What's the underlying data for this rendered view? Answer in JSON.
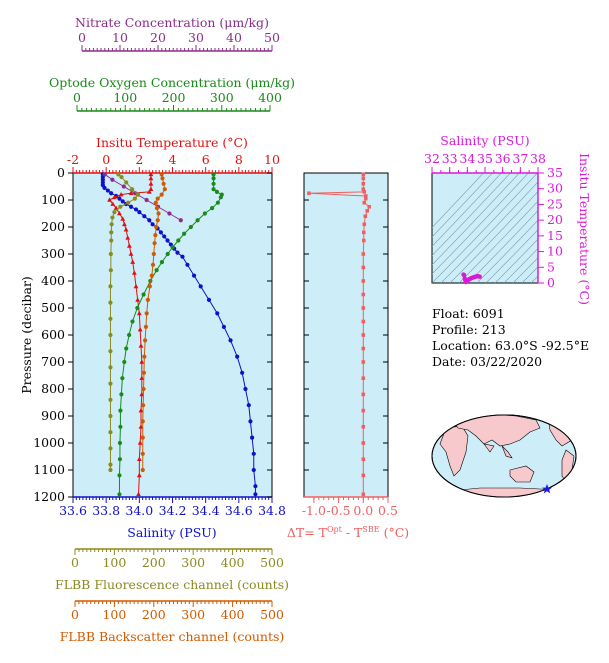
{
  "colors": {
    "nitrate": "#8b2e8b",
    "oxygen": "#1a8a1a",
    "temperature": "#e01010",
    "salinity": "#1010c8",
    "fluorescence": "#8a8a20",
    "backscatter": "#d05a00",
    "delta_t": "#f06060",
    "ts": "#d81ad8",
    "plot_bg": "#cdeef8"
  },
  "float_info": {
    "float": "Float:  6091",
    "profile": "Profile:  213",
    "location": "Location:  63.0°S  -92.5°E",
    "date": "Date:  03/22/2020"
  },
  "map": {
    "icon": "world-map-icon",
    "marker": "float-position-star"
  },
  "chart_data": [
    {
      "type": "line",
      "name": "profile-panel",
      "ylabel": "Pressure (decibar)",
      "ylim": [
        1200,
        0
      ],
      "yticks": [
        "0",
        "100",
        "200",
        "300",
        "400",
        "500",
        "600",
        "700",
        "800",
        "900",
        "1000",
        "1100",
        "1200"
      ],
      "axes": {
        "nitrate": {
          "title": "Nitrate Concentration (μm/kg)",
          "range": [
            0,
            50
          ],
          "ticks": [
            "0",
            "10",
            "20",
            "30",
            "40",
            "50"
          ]
        },
        "oxygen": {
          "title": "Optode Oxygen Concentration (μm/kg)",
          "range": [
            0,
            400
          ],
          "ticks": [
            "0",
            "100",
            "200",
            "300",
            "400"
          ]
        },
        "temperature": {
          "title": "Insitu Temperature (°C)",
          "range": [
            -2,
            10
          ],
          "ticks": [
            "-2",
            "0",
            "2",
            "4",
            "6",
            "8",
            "10"
          ]
        },
        "salinity": {
          "title": "Salinity (PSU)",
          "range": [
            33.6,
            34.8
          ],
          "ticks": [
            "33.6",
            "33.8",
            "34.0",
            "34.2",
            "34.4",
            "34.6",
            "34.8"
          ]
        },
        "fluorescence": {
          "title": "FLBB Fluorescence channel (counts)",
          "range": [
            0,
            500
          ],
          "ticks": [
            "0",
            "100",
            "200",
            "300",
            "400",
            "500"
          ]
        },
        "backscatter": {
          "title": "FLBB Backscatter channel (counts)",
          "range": [
            0,
            500
          ],
          "ticks": [
            "0",
            "100",
            "200",
            "300",
            "400",
            "500"
          ]
        }
      },
      "series": [
        {
          "key": "salinity",
          "axis": "salinity",
          "marker": "dot",
          "points": [
            [
              33.78,
              5
            ],
            [
              33.78,
              15
            ],
            [
              33.78,
              25
            ],
            [
              33.78,
              35
            ],
            [
              33.78,
              45
            ],
            [
              33.79,
              55
            ],
            [
              33.81,
              65
            ],
            [
              33.83,
              75
            ],
            [
              33.86,
              85
            ],
            [
              33.88,
              95
            ],
            [
              33.9,
              105
            ],
            [
              33.92,
              115
            ],
            [
              33.95,
              125
            ],
            [
              33.98,
              135
            ],
            [
              34.0,
              145
            ],
            [
              34.03,
              160
            ],
            [
              34.06,
              175
            ],
            [
              34.08,
              190
            ],
            [
              34.11,
              205
            ],
            [
              34.13,
              220
            ],
            [
              34.15,
              235
            ],
            [
              34.17,
              250
            ],
            [
              34.19,
              265
            ],
            [
              34.21,
              280
            ],
            [
              34.23,
              295
            ],
            [
              34.26,
              310
            ],
            [
              34.29,
              340
            ],
            [
              34.33,
              380
            ],
            [
              34.37,
              420
            ],
            [
              34.42,
              470
            ],
            [
              34.47,
              520
            ],
            [
              34.51,
              570
            ],
            [
              34.55,
              620
            ],
            [
              34.59,
              680
            ],
            [
              34.62,
              740
            ],
            [
              34.64,
              800
            ],
            [
              34.66,
              860
            ],
            [
              34.67,
              920
            ],
            [
              34.68,
              980
            ],
            [
              34.69,
              1040
            ],
            [
              34.69,
              1100
            ],
            [
              34.7,
              1160
            ],
            [
              34.7,
              1190
            ]
          ]
        },
        {
          "key": "temperature",
          "axis": "temperature",
          "marker": "triangle",
          "points": [
            [
              2.7,
              5
            ],
            [
              2.7,
              20
            ],
            [
              2.7,
              40
            ],
            [
              2.7,
              60
            ],
            [
              2.6,
              70
            ],
            [
              1.5,
              75
            ],
            [
              0.9,
              80
            ],
            [
              0.5,
              90
            ],
            [
              0.2,
              100
            ],
            [
              0.4,
              115
            ],
            [
              0.6,
              130
            ],
            [
              0.8,
              150
            ],
            [
              1.0,
              170
            ],
            [
              1.1,
              190
            ],
            [
              1.2,
              210
            ],
            [
              1.3,
              240
            ],
            [
              1.4,
              270
            ],
            [
              1.5,
              300
            ],
            [
              1.6,
              330
            ],
            [
              1.7,
              370
            ],
            [
              1.8,
              420
            ],
            [
              1.9,
              470
            ],
            [
              2.0,
              520
            ],
            [
              2.05,
              580
            ],
            [
              2.1,
              640
            ],
            [
              2.15,
              700
            ],
            [
              2.15,
              760
            ],
            [
              2.15,
              820
            ],
            [
              2.1,
              880
            ],
            [
              2.1,
              940
            ],
            [
              2.05,
              1000
            ],
            [
              2.0,
              1060
            ],
            [
              2.0,
              1120
            ],
            [
              1.95,
              1190
            ]
          ]
        },
        {
          "key": "oxygen",
          "axis": "oxygen",
          "marker": "dot",
          "points": [
            [
              283,
              5
            ],
            [
              283,
              20
            ],
            [
              283,
              40
            ],
            [
              283,
              60
            ],
            [
              290,
              70
            ],
            [
              300,
              80
            ],
            [
              298,
              90
            ],
            [
              292,
              110
            ],
            [
              280,
              130
            ],
            [
              265,
              150
            ],
            [
              250,
              175
            ],
            [
              236,
              200
            ],
            [
              222,
              225
            ],
            [
              210,
              250
            ],
            [
              198,
              275
            ],
            [
              188,
              300
            ],
            [
              176,
              330
            ],
            [
              165,
              360
            ],
            [
              152,
              400
            ],
            [
              138,
              450
            ],
            [
              125,
              500
            ],
            [
              115,
              550
            ],
            [
              108,
              600
            ],
            [
              102,
              650
            ],
            [
              98,
              700
            ],
            [
              94,
              760
            ],
            [
              92,
              820
            ],
            [
              90,
              880
            ],
            [
              90,
              940
            ],
            [
              89,
              1000
            ],
            [
              89,
              1060
            ],
            [
              88,
              1120
            ],
            [
              88,
              1190
            ]
          ]
        },
        {
          "key": "nitrate",
          "axis": "nitrate",
          "marker": "dot",
          "points": [
            [
              6,
              5
            ],
            [
              8,
              25
            ],
            [
              11,
              50
            ],
            [
              14,
              75
            ],
            [
              17,
              100
            ],
            [
              20,
              125
            ],
            [
              23,
              150
            ],
            [
              26,
              175
            ]
          ]
        },
        {
          "key": "fluorescence",
          "axis": "fluorescence",
          "marker": "dot",
          "points": [
            [
              110,
              5
            ],
            [
              118,
              15
            ],
            [
              130,
              35
            ],
            [
              145,
              60
            ],
            [
              160,
              80
            ],
            [
              152,
              95
            ],
            [
              135,
              110
            ],
            [
              115,
              125
            ],
            [
              100,
              145
            ],
            [
              95,
              165
            ],
            [
              93,
              190
            ],
            [
              92,
              220
            ],
            [
              92,
              250
            ],
            [
              91,
              300
            ],
            [
              91,
              360
            ],
            [
              90,
              420
            ],
            [
              90,
              480
            ],
            [
              90,
              540
            ],
            [
              90,
              600
            ],
            [
              90,
              660
            ],
            [
              90,
              720
            ],
            [
              90,
              780
            ],
            [
              90,
              840
            ],
            [
              90,
              900
            ],
            [
              90,
              960
            ],
            [
              90,
              1020
            ],
            [
              90,
              1080
            ],
            [
              90,
              1100
            ]
          ]
        },
        {
          "key": "backscatter",
          "axis": "backscatter",
          "marker": "dot",
          "points": [
            [
              220,
              5
            ],
            [
              222,
              20
            ],
            [
              225,
              40
            ],
            [
              228,
              60
            ],
            [
              220,
              80
            ],
            [
              210,
              95
            ],
            [
              205,
              110
            ],
            [
              208,
              130
            ],
            [
              212,
              150
            ],
            [
              210,
              175
            ],
            [
              206,
              200
            ],
            [
              204,
              230
            ],
            [
              202,
              260
            ],
            [
              200,
              300
            ],
            [
              198,
              340
            ],
            [
              195,
              380
            ],
            [
              190,
              420
            ],
            [
              185,
              470
            ],
            [
              182,
              520
            ],
            [
              180,
              570
            ],
            [
              178,
              620
            ],
            [
              176,
              680
            ],
            [
              175,
              740
            ],
            [
              174,
              800
            ],
            [
              173,
              860
            ],
            [
              172,
              920
            ],
            [
              172,
              980
            ],
            [
              172,
              1040
            ],
            [
              172,
              1100
            ]
          ]
        }
      ]
    },
    {
      "type": "line",
      "name": "delta-t-panel",
      "xlabel": "ΔT= TOpt - TSBE (°C)",
      "xlabel_parts": {
        "lead": "ΔT= T",
        "sup1": "Opt",
        "mid": " - T",
        "sup2": "SBE",
        "tail": " (°C)"
      },
      "xlim": [
        -1.2,
        0.5
      ],
      "xticks": [
        "-1.0",
        "-0.5",
        "0.0",
        "0.5"
      ],
      "ylim": [
        1200,
        0
      ],
      "series": [
        {
          "key": "delta_t",
          "marker": "square",
          "points": [
            [
              0.0,
              5
            ],
            [
              0.0,
              20
            ],
            [
              0.0,
              40
            ],
            [
              0.0,
              60
            ],
            [
              0.02,
              70
            ],
            [
              -1.1,
              75
            ],
            [
              0.05,
              85
            ],
            [
              0.05,
              95
            ],
            [
              0.02,
              110
            ],
            [
              0.12,
              125
            ],
            [
              0.08,
              140
            ],
            [
              0.04,
              160
            ],
            [
              0.02,
              190
            ],
            [
              0.01,
              220
            ],
            [
              0.01,
              250
            ],
            [
              0.0,
              300
            ],
            [
              0.0,
              350
            ],
            [
              0.0,
              400
            ],
            [
              0.0,
              450
            ],
            [
              0.0,
              500
            ],
            [
              0.0,
              550
            ],
            [
              0.0,
              600
            ],
            [
              0.0,
              650
            ],
            [
              0.0,
              700
            ],
            [
              0.0,
              760
            ],
            [
              0.0,
              820
            ],
            [
              0.0,
              880
            ],
            [
              0.0,
              940
            ],
            [
              0.0,
              1000
            ],
            [
              0.0,
              1060
            ],
            [
              0.0,
              1120
            ],
            [
              0.0,
              1190
            ]
          ]
        }
      ]
    },
    {
      "type": "scatter",
      "name": "ts-panel",
      "xlabel": "Salinity (PSU)",
      "ylabel": "Insitu Temperature (°C)",
      "xlim": [
        32,
        38
      ],
      "ylim": [
        0,
        35
      ],
      "xticks": [
        "32",
        "33",
        "34",
        "35",
        "36",
        "37",
        "38"
      ],
      "yticks": [
        "0",
        "5",
        "10",
        "15",
        "20",
        "25",
        "30",
        "35"
      ],
      "series": [
        {
          "key": "ts",
          "points": [
            [
              33.78,
              2.7
            ],
            [
              33.82,
              2.5
            ],
            [
              33.85,
              1.5
            ],
            [
              33.88,
              0.9
            ],
            [
              33.92,
              0.3
            ],
            [
              33.96,
              0.4
            ],
            [
              34.0,
              0.8
            ],
            [
              34.05,
              1.0
            ],
            [
              34.1,
              1.2
            ],
            [
              34.15,
              1.3
            ],
            [
              34.2,
              1.5
            ],
            [
              34.25,
              1.6
            ],
            [
              34.3,
              1.7
            ],
            [
              34.35,
              1.8
            ],
            [
              34.4,
              1.9
            ],
            [
              34.45,
              2.0
            ],
            [
              34.5,
              2.1
            ],
            [
              34.55,
              2.15
            ],
            [
              34.6,
              2.15
            ],
            [
              34.65,
              2.1
            ],
            [
              34.7,
              2.0
            ]
          ]
        }
      ]
    }
  ]
}
